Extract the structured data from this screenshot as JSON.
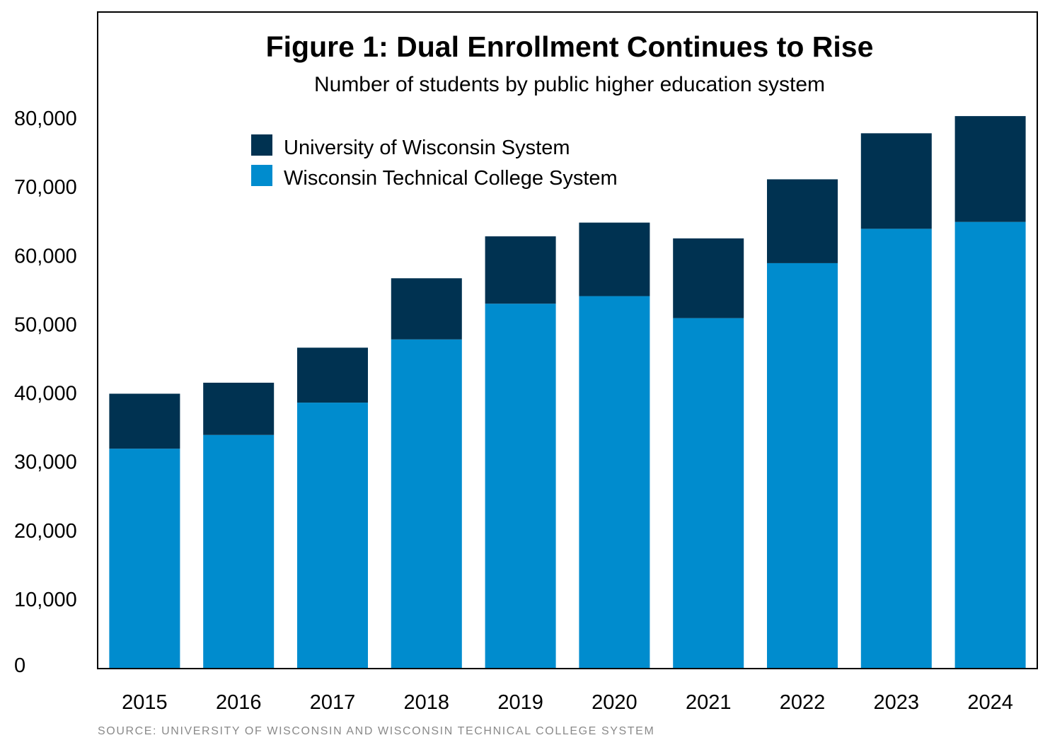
{
  "chart_data": {
    "type": "bar",
    "stacked": true,
    "title": "Figure 1: Dual Enrollment Continues to Rise",
    "subtitle": "Number of students by public higher education system",
    "source": "SOURCE: UNIVERSITY OF WISCONSIN AND WISCONSIN TECHNICAL COLLEGE SYSTEM",
    "categories": [
      "2015",
      "2016",
      "2017",
      "2018",
      "2019",
      "2020",
      "2021",
      "2022",
      "2023",
      "2024"
    ],
    "series": [
      {
        "name": "Wisconsin Technical College System",
        "color": "#008cce",
        "values": [
          31900,
          33900,
          38600,
          47800,
          53000,
          54100,
          50900,
          58900,
          63900,
          64900
        ]
      },
      {
        "name": "University of Wisconsin System",
        "color": "#003251",
        "values": [
          8000,
          7600,
          8000,
          8900,
          9800,
          10700,
          11600,
          12200,
          13900,
          15400
        ]
      }
    ],
    "legend_order": [
      1,
      0
    ],
    "legend_position": "top-left",
    "yticks": [
      "0",
      "10,000",
      "20,000",
      "30,000",
      "40,000",
      "50,000",
      "60,000",
      "70,000",
      "80,000"
    ],
    "ylim": [
      0,
      80000
    ],
    "grid": false
  }
}
